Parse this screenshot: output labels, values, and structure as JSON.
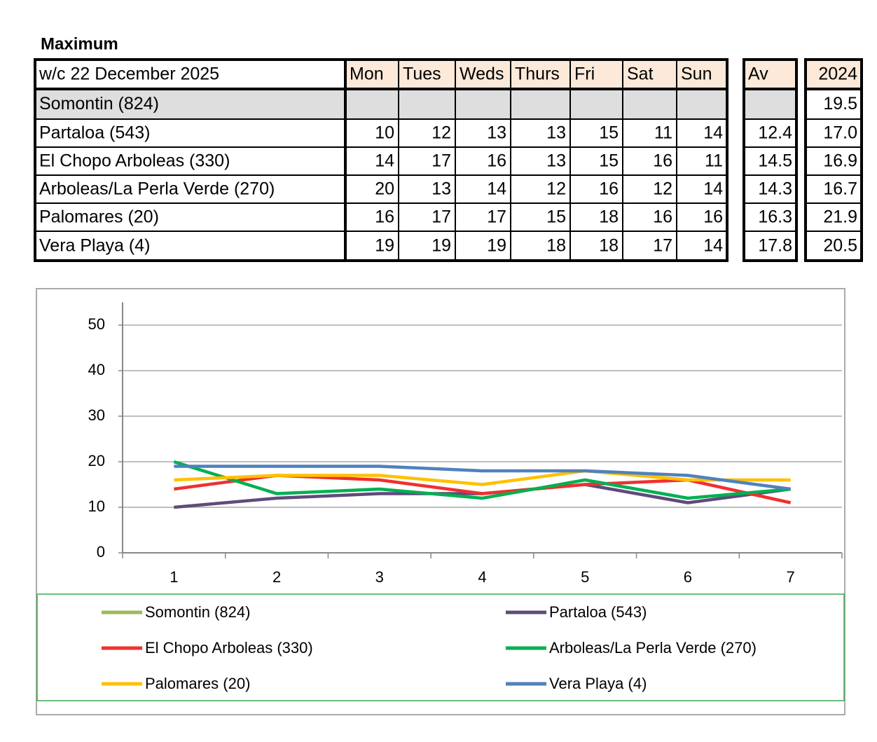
{
  "title": "Maximum",
  "table": {
    "header": [
      "w/c 22 December  2025",
      "Mon",
      "Tues",
      "Weds",
      "Thurs",
      "Fri",
      "Sat",
      "Sun",
      "Av",
      "2024"
    ],
    "rows": [
      [
        "Somontin (824)",
        null,
        null,
        null,
        null,
        null,
        null,
        null,
        null,
        "19.5"
      ],
      [
        "Partaloa (543)",
        "10",
        "12",
        "13",
        "13",
        "15",
        "11",
        "14",
        "12.4",
        "17.0"
      ],
      [
        "El Chopo  Arboleas (330)",
        "14",
        "17",
        "16",
        "13",
        "15",
        "16",
        "11",
        "14.5",
        "16.9"
      ],
      [
        "Arboleas/La Perla Verde (270)",
        "20",
        "13",
        "14",
        "12",
        "16",
        "12",
        "14",
        "14.3",
        "16.7"
      ],
      [
        "Palomares (20)",
        "16",
        "17",
        "17",
        "15",
        "18",
        "16",
        "16",
        "16.3",
        "21.9"
      ],
      [
        "Vera Playa (4)",
        "19",
        "19",
        "19",
        "18",
        "18",
        "17",
        "14",
        "17.8",
        "20.5"
      ]
    ]
  },
  "chart_data": {
    "type": "line",
    "categories": [
      1,
      2,
      3,
      4,
      5,
      6,
      7
    ],
    "ylim": [
      0,
      55
    ],
    "yticks": [
      0,
      10,
      20,
      30,
      40,
      50
    ],
    "grid": true,
    "series": [
      {
        "name": "Somontin (824)",
        "color": "#9bbb59",
        "values": [
          null,
          null,
          null,
          null,
          null,
          null,
          null
        ]
      },
      {
        "name": "Partaloa (543)",
        "color": "#604a7b",
        "values": [
          10,
          12,
          13,
          13,
          15,
          11,
          14
        ]
      },
      {
        "name": "El Chopo  Arboleas (330)",
        "color": "#f03030",
        "values": [
          14,
          17,
          16,
          13,
          15,
          16,
          11
        ]
      },
      {
        "name": "Arboleas/La Perla Verde (270)",
        "color": "#00b050",
        "values": [
          20,
          13,
          14,
          12,
          16,
          12,
          14
        ]
      },
      {
        "name": "Palomares (20)",
        "color": "#ffc000",
        "values": [
          16,
          17,
          17,
          15,
          18,
          16,
          16
        ]
      },
      {
        "name": "Vera Playa (4)",
        "color": "#4f81bd",
        "values": [
          19,
          19,
          19,
          18,
          18,
          17,
          14
        ]
      }
    ]
  }
}
